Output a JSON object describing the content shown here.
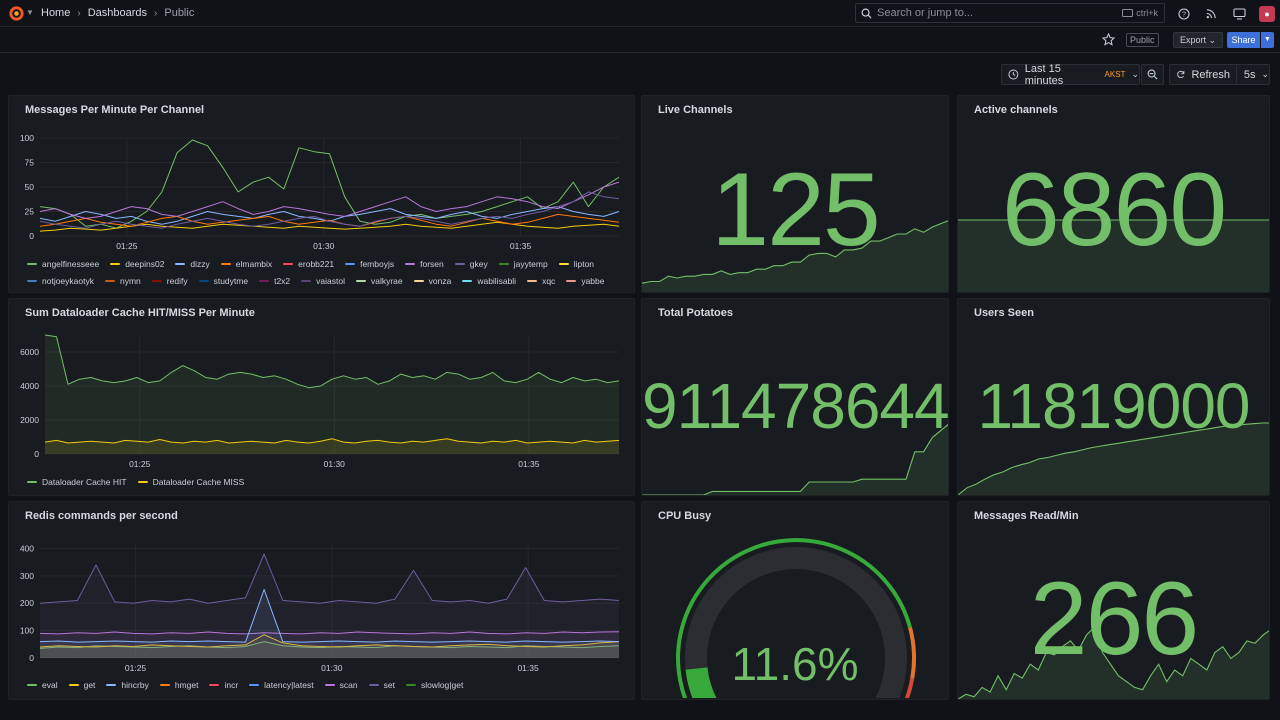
{
  "nav": {
    "breadcrumbs": [
      "Home",
      "Dashboards",
      "Public"
    ],
    "search_placeholder": "Search or jump to...",
    "search_shortcut": "ctrl+k"
  },
  "toolbar": {
    "public_tag": "Public",
    "export_label": "Export",
    "share_label": "Share",
    "time_range": "Last 15 minutes",
    "timezone": "AKST",
    "refresh_label": "Refresh",
    "refresh_interval": "5s"
  },
  "colors": {
    "stat_green": "#73bf69",
    "accent_blue": "#3d71d9",
    "tz_orange": "#ff9830",
    "gauge_track": "#2b2d33"
  },
  "panels": {
    "messages": {
      "title": "Messages Per Minute Per Channel",
      "legend": [
        {
          "name": "angelfinesseee",
          "color": "#73bf69"
        },
        {
          "name": "deepins02",
          "color": "#f2cc0c"
        },
        {
          "name": "dizzy",
          "color": "#8ab8ff"
        },
        {
          "name": "elmambix",
          "color": "#ff780a"
        },
        {
          "name": "erobb221",
          "color": "#f2495c"
        },
        {
          "name": "femboyjs",
          "color": "#5794f2"
        },
        {
          "name": "forsen",
          "color": "#b877d9"
        },
        {
          "name": "gkey",
          "color": "#705da0"
        },
        {
          "name": "jayytemp",
          "color": "#37872d"
        },
        {
          "name": "lipton",
          "color": "#fade2a"
        },
        {
          "name": "notjoeykaotyk",
          "color": "#447ebc"
        },
        {
          "name": "nymn",
          "color": "#c15c17"
        },
        {
          "name": "redify",
          "color": "#890f02"
        },
        {
          "name": "studytme",
          "color": "#0a437c"
        },
        {
          "name": "t2x2",
          "color": "#6d1f62"
        },
        {
          "name": "vaiastol",
          "color": "#584477"
        },
        {
          "name": "valkyrae",
          "color": "#b7dbab"
        },
        {
          "name": "vonza",
          "color": "#f4d598"
        },
        {
          "name": "wabilisabli",
          "color": "#70dbed"
        },
        {
          "name": "xqc",
          "color": "#f9ba8f"
        },
        {
          "name": "yabbe",
          "color": "#f29191"
        }
      ]
    },
    "live_channels": {
      "title": "Live Channels",
      "value": "125"
    },
    "active_channels": {
      "title": "Active channels",
      "value": "6860"
    },
    "cache": {
      "title": "Sum Dataloader Cache HIT/MISS Per Minute",
      "legend": [
        {
          "name": "Dataloader Cache HIT",
          "color": "#73bf69"
        },
        {
          "name": "Dataloader Cache MISS",
          "color": "#f2cc0c"
        }
      ]
    },
    "potatoes": {
      "title": "Total Potatoes",
      "value": "911478644"
    },
    "users_seen": {
      "title": "Users Seen",
      "value": "11819000"
    },
    "redis": {
      "title": "Redis commands per second",
      "legend": [
        {
          "name": "eval",
          "color": "#73bf69"
        },
        {
          "name": "get",
          "color": "#f2cc0c"
        },
        {
          "name": "hincrby",
          "color": "#8ab8ff"
        },
        {
          "name": "hmget",
          "color": "#ff780a"
        },
        {
          "name": "incr",
          "color": "#f2495c"
        },
        {
          "name": "latency|latest",
          "color": "#5794f2"
        },
        {
          "name": "scan",
          "color": "#b877d9"
        },
        {
          "name": "set",
          "color": "#705da0"
        },
        {
          "name": "slowlog|get",
          "color": "#37872d"
        }
      ]
    },
    "cpu": {
      "title": "CPU Busy",
      "value": "11.6%",
      "percent": 11.6
    },
    "read_min": {
      "title": "Messages Read/Min",
      "value": "266"
    }
  },
  "chart_data": [
    {
      "type": "line",
      "title": "Messages Per Minute Per Channel",
      "x_ticks": [
        "01:25",
        "01:30",
        "01:35"
      ],
      "ylim": [
        0,
        100
      ],
      "y_ticks": [
        0,
        25,
        50,
        75,
        100
      ],
      "series": [
        {
          "name": "angelfinesseee",
          "values": [
            30,
            28,
            22,
            10,
            12,
            8,
            15,
            25,
            45,
            85,
            98,
            92,
            70,
            45,
            55,
            60,
            48,
            90,
            86,
            84,
            40,
            15,
            12,
            14,
            20,
            22,
            18,
            20,
            22,
            25,
            30,
            35,
            40,
            28,
            35,
            55,
            30,
            50,
            60
          ]
        },
        {
          "name": "deepins02",
          "values": [
            5,
            6,
            8,
            7,
            6,
            8,
            10,
            12,
            10,
            9,
            8,
            10,
            12,
            11,
            10,
            9,
            8,
            10,
            9,
            8,
            7,
            8,
            9,
            10,
            12,
            10,
            9,
            8,
            10,
            12,
            14,
            12,
            10,
            9,
            8,
            10,
            11,
            12,
            10
          ]
        },
        {
          "name": "dizzy",
          "values": [
            18,
            15,
            20,
            25,
            22,
            18,
            20,
            15,
            12,
            15,
            20,
            25,
            22,
            20,
            18,
            22,
            25,
            20,
            18,
            15,
            20,
            22,
            25,
            28,
            22,
            20,
            18,
            22,
            25,
            20,
            18,
            22,
            25,
            28,
            30,
            25,
            22,
            20,
            25
          ]
        },
        {
          "name": "elmambix",
          "values": [
            10,
            12,
            15,
            18,
            14,
            12,
            10,
            14,
            18,
            20,
            15,
            12,
            14,
            16,
            18,
            20,
            15,
            12,
            14,
            16,
            12,
            10,
            14,
            18,
            20,
            16,
            12,
            10,
            14,
            18,
            15,
            12,
            14,
            18,
            22,
            20,
            18,
            16,
            14
          ]
        },
        {
          "name": "forsen",
          "values": [
            25,
            28,
            22,
            18,
            20,
            25,
            30,
            28,
            22,
            20,
            25,
            30,
            35,
            28,
            22,
            25,
            30,
            28,
            25,
            22,
            20,
            25,
            30,
            35,
            40,
            30,
            25,
            28,
            30,
            35,
            40,
            38,
            35,
            30,
            28,
            35,
            42,
            50,
            55
          ]
        },
        {
          "name": "gkey",
          "values": [
            15,
            12,
            10,
            8,
            12,
            15,
            12,
            10,
            8,
            12,
            15,
            18,
            15,
            12,
            10,
            12,
            15,
            18,
            20,
            15,
            12,
            10,
            15,
            18,
            20,
            18,
            15,
            12,
            15,
            18,
            20,
            18,
            22,
            25,
            30,
            35,
            45,
            40,
            38
          ]
        }
      ]
    },
    {
      "type": "line",
      "title": "Sum Dataloader Cache HIT/MISS Per Minute",
      "x_ticks": [
        "01:25",
        "01:30",
        "01:35"
      ],
      "ylim": [
        0,
        7000
      ],
      "y_ticks": [
        0,
        2000,
        4000,
        6000
      ],
      "series": [
        {
          "name": "Dataloader Cache HIT",
          "values": [
            7000,
            6900,
            4100,
            4400,
            4500,
            4300,
            4200,
            4300,
            4500,
            4200,
            4300,
            4800,
            5200,
            4900,
            4500,
            4400,
            4700,
            4800,
            4700,
            4500,
            4600,
            4400,
            4100,
            3900,
            4000,
            4400,
            4600,
            4400,
            4500,
            4100,
            4300,
            4700,
            4500,
            4600,
            4400,
            4800,
            4700,
            4400,
            4500,
            4800,
            4300,
            4200,
            4400,
            4800,
            4400,
            4200,
            4500,
            4300,
            4400,
            4200,
            4300
          ]
        },
        {
          "name": "Dataloader Cache MISS",
          "values": [
            700,
            800,
            650,
            700,
            750,
            700,
            650,
            800,
            750,
            700,
            850,
            700,
            650,
            750,
            700,
            800,
            650,
            700,
            750,
            700,
            650,
            800,
            700,
            650,
            750,
            900,
            700,
            650,
            750,
            800,
            700,
            650,
            750,
            700,
            800,
            900,
            750,
            700,
            650,
            750,
            700,
            800,
            650,
            700,
            750,
            700,
            650,
            800,
            700,
            750,
            800
          ]
        }
      ]
    },
    {
      "type": "area",
      "title": "Redis commands per second",
      "x_ticks": [
        "01:25",
        "01:30",
        "01:35"
      ],
      "ylim": [
        0,
        420
      ],
      "y_ticks": [
        0,
        100,
        200,
        300,
        400
      ],
      "series": [
        {
          "name": "eval",
          "values": [
            35,
            40,
            38,
            45,
            42,
            40,
            38,
            42,
            45,
            40,
            38,
            42,
            60,
            45,
            40,
            38,
            42,
            40,
            38,
            45,
            42,
            40,
            38,
            42,
            40,
            38,
            45,
            42,
            40,
            38,
            42,
            45
          ]
        },
        {
          "name": "get",
          "values": [
            40,
            45,
            42,
            40,
            45,
            42,
            48,
            45,
            42,
            40,
            45,
            48,
            85,
            55,
            45,
            42,
            40,
            45,
            48,
            45,
            42,
            40,
            45,
            48,
            50,
            45,
            42,
            40,
            45,
            48,
            55,
            60
          ]
        },
        {
          "name": "set",
          "values": [
            200,
            205,
            210,
            340,
            205,
            200,
            210,
            205,
            215,
            200,
            210,
            220,
            380,
            210,
            205,
            200,
            210,
            205,
            200,
            215,
            320,
            210,
            205,
            210,
            200,
            215,
            330,
            210,
            205,
            210,
            215,
            210
          ]
        },
        {
          "name": "scan",
          "values": [
            90,
            88,
            92,
            90,
            95,
            90,
            88,
            92,
            90,
            95,
            90,
            88,
            92,
            90,
            88,
            92,
            90,
            95,
            92,
            90,
            88,
            92,
            90,
            95,
            90,
            88,
            92,
            90,
            95,
            92,
            95,
            96
          ]
        },
        {
          "name": "hincrby",
          "values": [
            60,
            62,
            58,
            60,
            62,
            60,
            58,
            62,
            60,
            62,
            60,
            58,
            250,
            60,
            58,
            60,
            62,
            60,
            58,
            62,
            60,
            58,
            60,
            62,
            60,
            58,
            62,
            60,
            58,
            60,
            62,
            60
          ]
        }
      ]
    }
  ],
  "sparklines": {
    "live_channels": [
      10,
      12,
      12,
      18,
      16,
      18,
      18,
      20,
      20,
      24,
      20,
      22,
      22,
      26,
      26,
      30,
      30,
      34,
      34,
      42,
      44,
      44,
      40,
      48,
      48,
      50,
      58,
      58,
      62,
      66,
      66,
      72,
      68,
      74,
      78,
      82
    ],
    "active_channels": [
      28,
      28,
      28,
      28,
      28,
      28,
      28,
      28,
      28,
      28,
      28,
      28
    ],
    "potatoes": [
      0,
      0,
      0,
      0,
      0,
      0,
      0,
      0,
      5,
      5,
      5,
      5,
      5,
      5,
      5,
      5,
      5,
      5,
      5,
      18,
      18,
      18,
      18,
      18,
      18,
      22,
      22,
      22,
      22,
      22,
      22,
      60,
      60,
      80,
      90,
      100
    ],
    "users_seen": [
      0,
      10,
      15,
      22,
      28,
      32,
      38,
      42,
      45,
      50,
      52,
      55,
      58,
      60,
      63,
      66,
      68,
      70,
      72,
      74,
      76,
      78,
      80,
      82,
      84,
      86,
      88,
      90,
      92,
      94,
      96,
      97,
      98,
      99,
      100,
      100
    ],
    "read_min": [
      0,
      4,
      2,
      10,
      6,
      20,
      8,
      22,
      18,
      30,
      25,
      40,
      38,
      45,
      50,
      42,
      55,
      62,
      40,
      30,
      20,
      15,
      10,
      8,
      20,
      30,
      15,
      25,
      20,
      35,
      30,
      25,
      40,
      45,
      35,
      40,
      50,
      48,
      55,
      60
    ]
  }
}
